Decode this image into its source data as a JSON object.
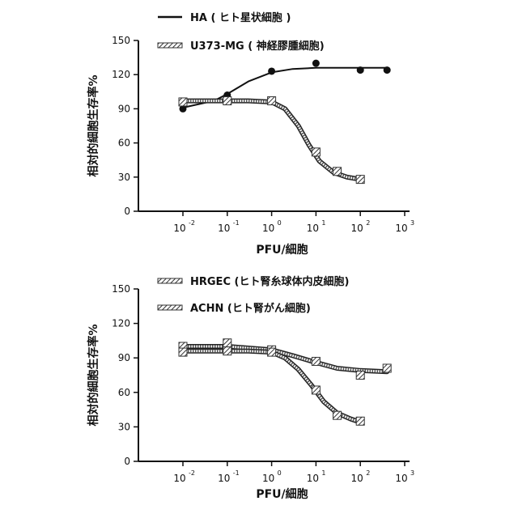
{
  "chart_data": [
    {
      "type": "scatter",
      "title": "",
      "xlabel": "PFU/細胞",
      "ylabel": "相対的細胞生存率%",
      "xscale": "log",
      "xlim": [
        0.01,
        1000
      ],
      "ylim": [
        0,
        150
      ],
      "x_ticks": [
        0.01,
        0.1,
        1,
        10,
        100,
        1000
      ],
      "x_tick_labels": [
        {
          "base": "10",
          "exp": "-2"
        },
        {
          "base": "10",
          "exp": "-1"
        },
        {
          "base": "10",
          "exp": "0"
        },
        {
          "base": "10",
          "exp": "1"
        },
        {
          "base": "10",
          "exp": "2"
        },
        {
          "base": "10",
          "exp": "3"
        }
      ],
      "y_ticks": [
        "0",
        "30",
        "60",
        "90",
        "120",
        "150"
      ],
      "legend_position": "top",
      "series": [
        {
          "name": "HA ( ヒト星状細胞 )",
          "line_style": "solid",
          "color": "#111111",
          "marker": "circle",
          "points": [
            {
              "x": 0.01,
              "y": 90
            },
            {
              "x": 0.1,
              "y": 102
            },
            {
              "x": 1,
              "y": 123
            },
            {
              "x": 10,
              "y": 130
            },
            {
              "x": 100,
              "y": 124
            },
            {
              "x": 400,
              "y": 124
            }
          ],
          "fit": [
            {
              "x": 0.01,
              "y": 91
            },
            {
              "x": 0.05,
              "y": 97
            },
            {
              "x": 0.1,
              "y": 103
            },
            {
              "x": 0.3,
              "y": 114
            },
            {
              "x": 1,
              "y": 122
            },
            {
              "x": 3,
              "y": 125
            },
            {
              "x": 10,
              "y": 126
            },
            {
              "x": 100,
              "y": 126
            },
            {
              "x": 400,
              "y": 126
            }
          ]
        },
        {
          "name": "U373-MG ( 神経膠腫細胞)",
          "line_style": "hatched",
          "color": "#666666",
          "marker": "square",
          "points": [
            {
              "x": 0.01,
              "y": 96
            },
            {
              "x": 0.1,
              "y": 97
            },
            {
              "x": 1,
              "y": 97
            },
            {
              "x": 10,
              "y": 52
            },
            {
              "x": 30,
              "y": 35
            },
            {
              "x": 100,
              "y": 28
            }
          ],
          "fit": [
            {
              "x": 0.01,
              "y": 97
            },
            {
              "x": 0.3,
              "y": 97
            },
            {
              "x": 1,
              "y": 96
            },
            {
              "x": 2,
              "y": 90
            },
            {
              "x": 4,
              "y": 75
            },
            {
              "x": 7,
              "y": 58
            },
            {
              "x": 12,
              "y": 44
            },
            {
              "x": 25,
              "y": 34
            },
            {
              "x": 50,
              "y": 30
            },
            {
              "x": 100,
              "y": 28
            }
          ]
        }
      ]
    },
    {
      "type": "scatter",
      "title": "",
      "xlabel": "PFU/細胞",
      "ylabel": "相対的細胞生存率%",
      "xscale": "log",
      "xlim": [
        0.01,
        1000
      ],
      "ylim": [
        0,
        150
      ],
      "x_ticks": [
        0.01,
        0.1,
        1,
        10,
        100,
        1000
      ],
      "x_tick_labels": [
        {
          "base": "10",
          "exp": "-2"
        },
        {
          "base": "10",
          "exp": "-1"
        },
        {
          "base": "10",
          "exp": "0"
        },
        {
          "base": "10",
          "exp": "1"
        },
        {
          "base": "10",
          "exp": "2"
        },
        {
          "base": "10",
          "exp": "3"
        }
      ],
      "y_ticks": [
        "0",
        "30",
        "60",
        "90",
        "120",
        "150"
      ],
      "legend_position": "top",
      "series": [
        {
          "name": "HRGEC (ヒト腎糸球体内皮細胞)",
          "line_style": "hatched",
          "color": "#444444",
          "marker": "square",
          "points": [
            {
              "x": 0.01,
              "y": 100
            },
            {
              "x": 0.1,
              "y": 103
            },
            {
              "x": 1,
              "y": 97
            },
            {
              "x": 10,
              "y": 87
            },
            {
              "x": 100,
              "y": 75
            },
            {
              "x": 400,
              "y": 81
            }
          ],
          "fit": [
            {
              "x": 0.01,
              "y": 100
            },
            {
              "x": 0.1,
              "y": 100
            },
            {
              "x": 1,
              "y": 97
            },
            {
              "x": 3,
              "y": 92
            },
            {
              "x": 10,
              "y": 86
            },
            {
              "x": 30,
              "y": 81
            },
            {
              "x": 100,
              "y": 79
            },
            {
              "x": 400,
              "y": 78
            }
          ]
        },
        {
          "name": "ACHN (ヒト腎がん細胞)",
          "line_style": "hatched",
          "color": "#777777",
          "marker": "square",
          "points": [
            {
              "x": 0.01,
              "y": 95
            },
            {
              "x": 0.1,
              "y": 96
            },
            {
              "x": 1,
              "y": 95
            },
            {
              "x": 10,
              "y": 62
            },
            {
              "x": 30,
              "y": 40
            },
            {
              "x": 100,
              "y": 35
            }
          ],
          "fit": [
            {
              "x": 0.01,
              "y": 96
            },
            {
              "x": 0.3,
              "y": 96
            },
            {
              "x": 1,
              "y": 95
            },
            {
              "x": 2,
              "y": 90
            },
            {
              "x": 4,
              "y": 80
            },
            {
              "x": 8,
              "y": 66
            },
            {
              "x": 15,
              "y": 52
            },
            {
              "x": 30,
              "y": 42
            },
            {
              "x": 60,
              "y": 37
            },
            {
              "x": 100,
              "y": 34
            }
          ]
        }
      ]
    }
  ]
}
